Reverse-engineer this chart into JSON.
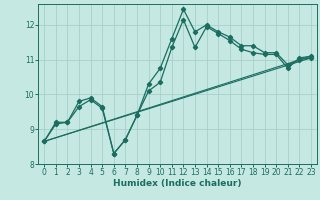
{
  "title": "",
  "xlabel": "Humidex (Indice chaleur)",
  "xlim": [
    -0.5,
    23.5
  ],
  "ylim": [
    8,
    12.6
  ],
  "yticks": [
    8,
    9,
    10,
    11,
    12
  ],
  "xticks": [
    0,
    1,
    2,
    3,
    4,
    5,
    6,
    7,
    8,
    9,
    10,
    11,
    12,
    13,
    14,
    15,
    16,
    17,
    18,
    19,
    20,
    21,
    22,
    23
  ],
  "bg_color": "#c6e8e2",
  "line_color": "#1a6e60",
  "grid_color": "#a8d0ca",
  "series_jagged1": [
    8.65,
    9.2,
    9.2,
    9.65,
    9.85,
    9.6,
    8.3,
    8.7,
    9.4,
    10.3,
    10.75,
    11.6,
    12.45,
    11.8,
    12.0,
    11.8,
    11.65,
    11.4,
    11.4,
    11.2,
    11.2,
    10.85,
    11.0,
    11.05
  ],
  "series_jagged2": [
    8.65,
    9.15,
    9.2,
    9.8,
    9.9,
    9.65,
    8.3,
    8.7,
    9.4,
    10.1,
    10.35,
    11.35,
    12.15,
    11.35,
    11.95,
    11.75,
    11.55,
    11.3,
    11.2,
    11.15,
    11.15,
    10.75,
    11.05,
    11.1
  ],
  "trend1_x": [
    0,
    23
  ],
  "trend1_y": [
    8.65,
    11.05
  ],
  "trend2_x": [
    0,
    23
  ],
  "trend2_y": [
    8.65,
    11.1
  ]
}
